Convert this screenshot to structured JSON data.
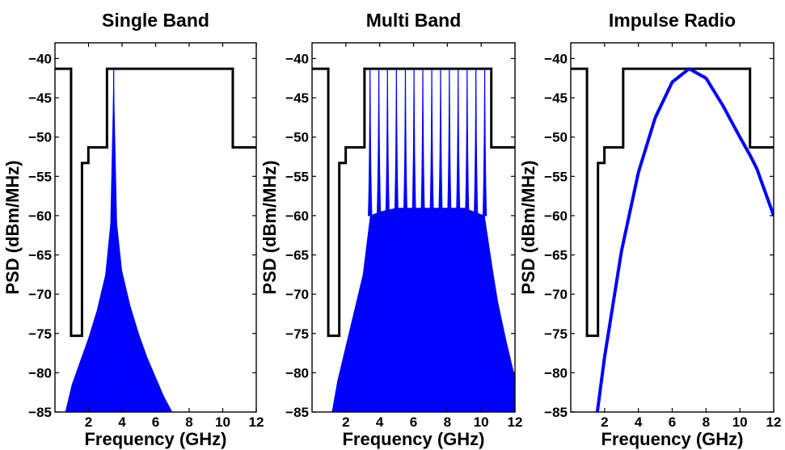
{
  "chart_data": [
    {
      "type": "line",
      "title": "Single Band",
      "xlabel": "Frequency (GHz)",
      "ylabel": "PSD (dBm/MHz)",
      "xlim": [
        0,
        12
      ],
      "ylim": [
        -85,
        -38
      ],
      "xticks": [
        2,
        4,
        6,
        8,
        10,
        12
      ],
      "yticks": [
        -40,
        -45,
        -50,
        -55,
        -60,
        -65,
        -70,
        -75,
        -80,
        -85
      ],
      "series": [
        {
          "role": "mask",
          "color": "#000000",
          "x": [
            0,
            0.96,
            0.96,
            1.61,
            1.61,
            1.99,
            1.99,
            3.1,
            3.1,
            10.6,
            10.6,
            12
          ],
          "y": [
            -41.3,
            -41.3,
            -75.3,
            -75.3,
            -53.3,
            -53.3,
            -51.3,
            -51.3,
            -41.3,
            -41.3,
            -51.3,
            -51.3
          ]
        },
        {
          "role": "psd",
          "color": "#0000ff",
          "kind": "single",
          "center": 3.5,
          "peak": -41.3,
          "x": [
            0.5,
            1.0,
            1.5,
            2.0,
            2.5,
            3.0,
            3.3,
            3.5,
            3.7,
            4.0,
            4.5,
            5.0,
            5.5,
            6.0,
            6.5,
            7.0,
            7.5
          ],
          "y": [
            -86,
            -81.5,
            -78.5,
            -75.5,
            -72,
            -67.5,
            -61,
            -41.3,
            -61,
            -67,
            -71.5,
            -75,
            -78,
            -80.5,
            -83,
            -85,
            -87
          ]
        }
      ]
    },
    {
      "type": "line",
      "title": "Multi Band",
      "xlabel": "Frequency (GHz)",
      "ylabel": "PSD (dBm/MHz)",
      "xlim": [
        0,
        12
      ],
      "ylim": [
        -85,
        -38
      ],
      "xticks": [
        2,
        4,
        6,
        8,
        10,
        12
      ],
      "yticks": [
        -40,
        -45,
        -50,
        -55,
        -60,
        -65,
        -70,
        -75,
        -80,
        -85
      ],
      "series": [
        {
          "role": "mask",
          "color": "#000000",
          "x": [
            0,
            0.96,
            0.96,
            1.61,
            1.61,
            1.99,
            1.99,
            3.1,
            3.1,
            10.6,
            10.6,
            12
          ],
          "y": [
            -41.3,
            -41.3,
            -75.3,
            -75.3,
            -53.3,
            -53.3,
            -51.3,
            -51.3,
            -41.3,
            -41.3,
            -51.3,
            -51.3
          ]
        },
        {
          "role": "psd",
          "color": "#0000ff",
          "kind": "multi",
          "peak": -41.3,
          "trough": -60,
          "centers": [
            3.43,
            3.95,
            4.46,
            4.99,
            5.52,
            6.03,
            6.55,
            7.08,
            7.6,
            8.12,
            8.64,
            9.17,
            9.69,
            10.21
          ],
          "x": [
            1.0,
            1.5,
            2.0,
            2.5,
            3.0,
            3.43,
            4.0,
            5.0,
            7.0,
            9.0,
            10.21,
            10.7,
            11.0,
            11.5,
            12.0
          ],
          "y": [
            -87,
            -81,
            -76.5,
            -72,
            -67.5,
            -60,
            -59.5,
            -59,
            -59,
            -59,
            -60,
            -67,
            -71,
            -76,
            -80.5
          ]
        }
      ]
    },
    {
      "type": "line",
      "title": "Impulse Radio",
      "xlabel": "Frequency (GHz)",
      "ylabel": "PSD (dBm/MHz)",
      "xlim": [
        0,
        12
      ],
      "ylim": [
        -85,
        -38
      ],
      "xticks": [
        2,
        4,
        6,
        8,
        10,
        12
      ],
      "yticks": [
        -40,
        -45,
        -50,
        -55,
        -60,
        -65,
        -70,
        -75,
        -80,
        -85
      ],
      "series": [
        {
          "role": "mask",
          "color": "#000000",
          "x": [
            0,
            0.96,
            0.96,
            1.61,
            1.61,
            1.99,
            1.99,
            3.1,
            3.1,
            10.6,
            10.6,
            12
          ],
          "y": [
            -41.3,
            -41.3,
            -75.3,
            -75.3,
            -53.3,
            -53.3,
            -51.3,
            -51.3,
            -41.3,
            -41.3,
            -51.3,
            -51.3
          ]
        },
        {
          "role": "psd",
          "color": "#0000ff",
          "kind": "smooth",
          "x": [
            1.57,
            2.0,
            3.0,
            4.0,
            5.0,
            6.0,
            7.0,
            8.0,
            9.0,
            10.0,
            10.6,
            11.0,
            12.0
          ],
          "y": [
            -85,
            -78,
            -64.5,
            -54.5,
            -47.5,
            -43,
            -41.3,
            -42.5,
            -46,
            -50,
            -52.3,
            -54,
            -60
          ]
        }
      ]
    }
  ]
}
